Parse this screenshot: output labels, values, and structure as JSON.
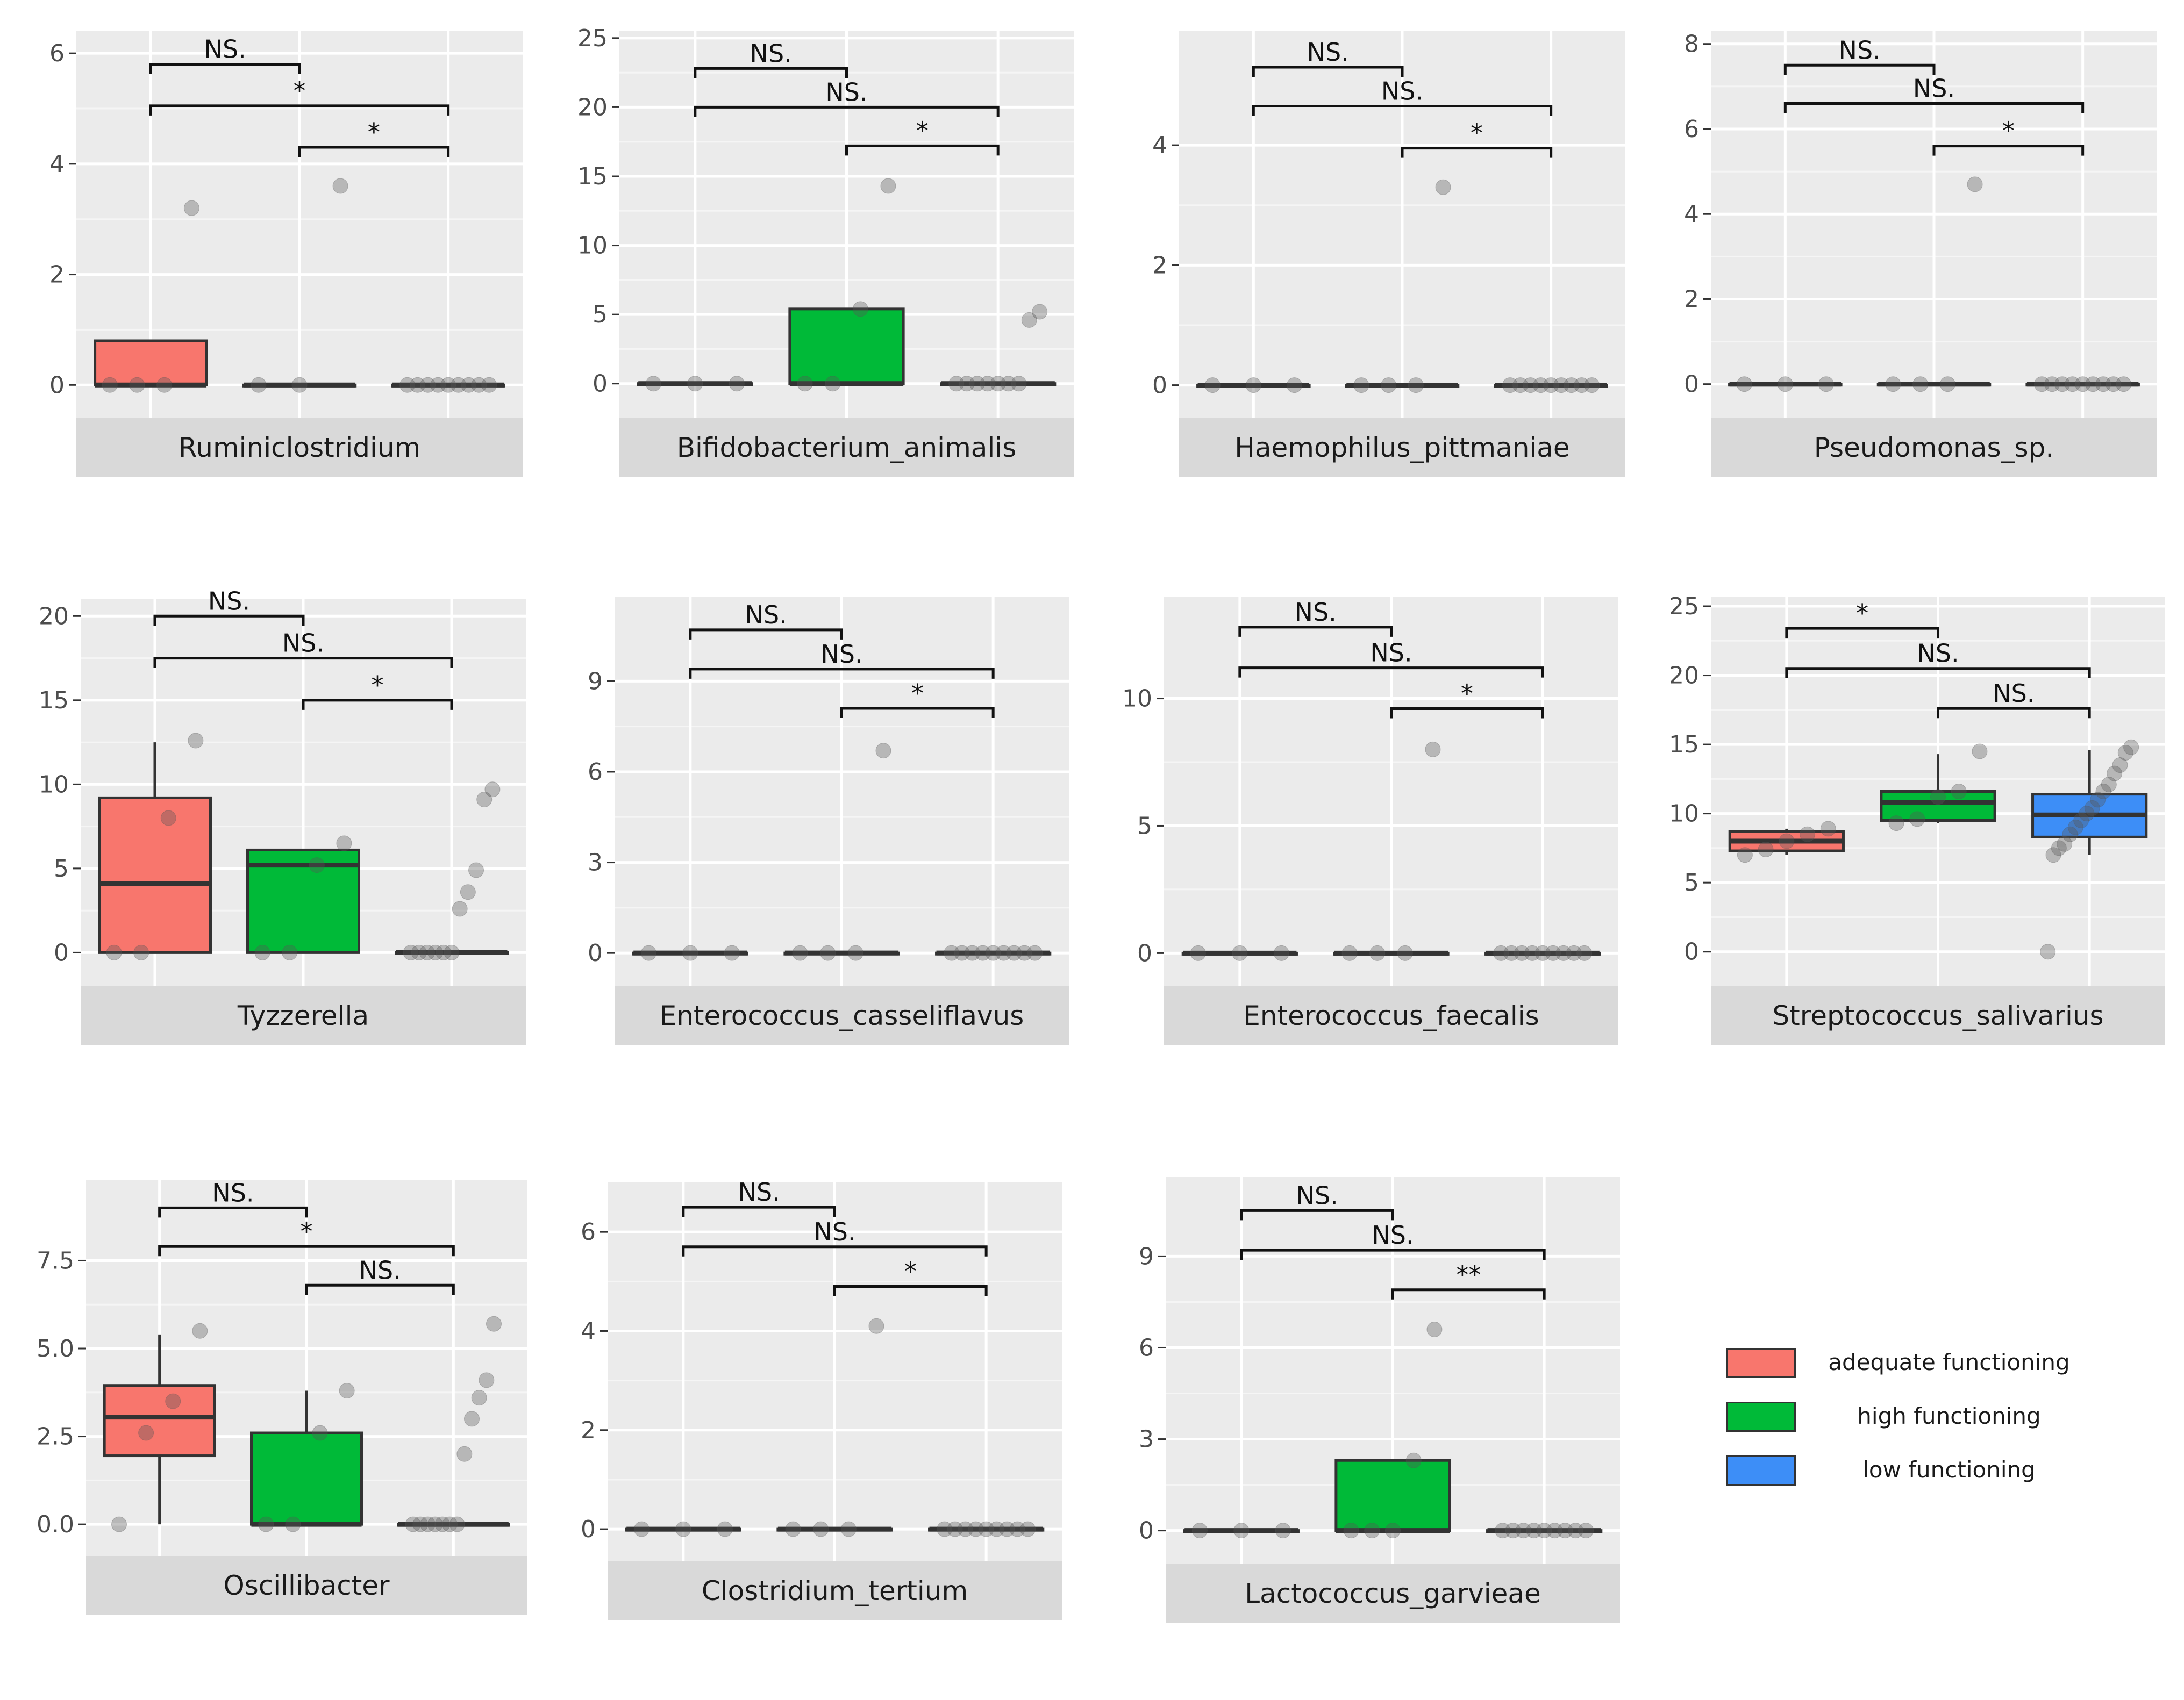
{
  "legend": {
    "items": [
      {
        "label": "adequate functioning",
        "color": "#F8766D"
      },
      {
        "label": "high functioning",
        "color": "#00BA38"
      },
      {
        "label": "low functioning",
        "color": "#3D8EF7"
      }
    ]
  },
  "chart_data": [
    {
      "type": "box",
      "title": "Ruminiclostridium",
      "ylim": [
        -0.6,
        6.4
      ],
      "yticks": [
        "0",
        "2",
        "4",
        "6"
      ],
      "boxes": [
        {
          "group": "adequate functioning",
          "fill": "#F8766D",
          "q1": 0,
          "median": 0,
          "q3": 0.8,
          "wlow": 0,
          "whigh": 0,
          "points": [
            0,
            0,
            0,
            3.2
          ]
        },
        {
          "group": "high functioning",
          "fill": "#00BA38",
          "q1": 0,
          "median": 0,
          "q3": 0,
          "wlow": 0,
          "whigh": 0,
          "points": [
            0,
            0,
            3.6
          ]
        },
        {
          "group": "low functioning",
          "fill": "#3D8EF7",
          "q1": 0,
          "median": 0,
          "q3": 0,
          "wlow": 0,
          "whigh": 0,
          "points": [
            0,
            0,
            0,
            0,
            0,
            0,
            0,
            0,
            0
          ]
        }
      ],
      "brackets": [
        {
          "from": 0,
          "to": 1,
          "y": 5.8,
          "label": "NS."
        },
        {
          "from": 0,
          "to": 2,
          "y": 5.05,
          "label": "*"
        },
        {
          "from": 1,
          "to": 2,
          "y": 4.3,
          "label": "*"
        }
      ]
    },
    {
      "type": "box",
      "title": "Bifidobacterium_animalis",
      "ylim": [
        -2.5,
        25.5
      ],
      "yticks": [
        "0",
        "5",
        "10",
        "15",
        "20",
        "25"
      ],
      "boxes": [
        {
          "group": "adequate functioning",
          "fill": "#F8766D",
          "q1": 0,
          "median": 0,
          "q3": 0,
          "wlow": 0,
          "whigh": 0,
          "points": [
            0,
            0,
            0
          ]
        },
        {
          "group": "high functioning",
          "fill": "#00BA38",
          "q1": 0,
          "median": 0,
          "q3": 5.4,
          "wlow": 0,
          "whigh": 5.4,
          "points": [
            0,
            0,
            5.4,
            14.3
          ]
        },
        {
          "group": "low functioning",
          "fill": "#3D8EF7",
          "q1": 0,
          "median": 0,
          "q3": 0,
          "wlow": 0,
          "whigh": 0,
          "points": [
            0,
            0,
            0,
            0,
            0,
            0,
            0,
            4.6,
            5.2
          ]
        }
      ],
      "brackets": [
        {
          "from": 0,
          "to": 1,
          "y": 22.8,
          "label": "NS."
        },
        {
          "from": 0,
          "to": 2,
          "y": 20,
          "label": "NS."
        },
        {
          "from": 1,
          "to": 2,
          "y": 17.2,
          "label": "*"
        }
      ]
    },
    {
      "type": "box",
      "title": "Haemophilus_pittmaniae",
      "ylim": [
        -0.55,
        5.9
      ],
      "yticks": [
        "0",
        "2",
        "4"
      ],
      "boxes": [
        {
          "group": "adequate functioning",
          "fill": "#F8766D",
          "q1": 0,
          "median": 0,
          "q3": 0,
          "wlow": 0,
          "whigh": 0,
          "points": [
            0,
            0,
            0
          ]
        },
        {
          "group": "high functioning",
          "fill": "#00BA38",
          "q1": 0,
          "median": 0,
          "q3": 0,
          "wlow": 0,
          "whigh": 0,
          "points": [
            0,
            0,
            0,
            3.3
          ]
        },
        {
          "group": "low functioning",
          "fill": "#3D8EF7",
          "q1": 0,
          "median": 0,
          "q3": 0,
          "wlow": 0,
          "whigh": 0,
          "points": [
            0,
            0,
            0,
            0,
            0,
            0,
            0,
            0,
            0
          ]
        }
      ],
      "brackets": [
        {
          "from": 0,
          "to": 1,
          "y": 5.3,
          "label": "NS."
        },
        {
          "from": 0,
          "to": 2,
          "y": 4.65,
          "label": "NS."
        },
        {
          "from": 1,
          "to": 2,
          "y": 3.95,
          "label": "*"
        }
      ]
    },
    {
      "type": "box",
      "title": "Pseudomonas_sp.",
      "ylim": [
        -0.8,
        8.3
      ],
      "yticks": [
        "0",
        "2",
        "4",
        "6",
        "8"
      ],
      "boxes": [
        {
          "group": "adequate functioning",
          "fill": "#F8766D",
          "q1": 0,
          "median": 0,
          "q3": 0,
          "wlow": 0,
          "whigh": 0,
          "points": [
            0,
            0,
            0
          ]
        },
        {
          "group": "high functioning",
          "fill": "#00BA38",
          "q1": 0,
          "median": 0,
          "q3": 0,
          "wlow": 0,
          "whigh": 0,
          "points": [
            0,
            0,
            0,
            4.7
          ]
        },
        {
          "group": "low functioning",
          "fill": "#3D8EF7",
          "q1": 0,
          "median": 0,
          "q3": 0,
          "wlow": 0,
          "whigh": 0,
          "points": [
            0,
            0,
            0,
            0,
            0,
            0,
            0,
            0,
            0
          ]
        }
      ],
      "brackets": [
        {
          "from": 0,
          "to": 1,
          "y": 7.5,
          "label": "NS."
        },
        {
          "from": 0,
          "to": 2,
          "y": 6.6,
          "label": "NS."
        },
        {
          "from": 1,
          "to": 2,
          "y": 5.6,
          "label": "*"
        }
      ]
    },
    {
      "type": "box",
      "title": "Tyzzerella",
      "ylim": [
        -2,
        21
      ],
      "yticks": [
        "0",
        "5",
        "10",
        "15",
        "20"
      ],
      "boxes": [
        {
          "group": "adequate functioning",
          "fill": "#F8766D",
          "q1": 0,
          "median": 4.1,
          "q3": 9.2,
          "wlow": 0,
          "whigh": 12.5,
          "points": [
            0,
            0,
            8,
            12.6
          ]
        },
        {
          "group": "high functioning",
          "fill": "#00BA38",
          "q1": 0,
          "median": 5.2,
          "q3": 6.1,
          "wlow": 0,
          "whigh": 6.1,
          "points": [
            0,
            0,
            5.2,
            6.5
          ]
        },
        {
          "group": "low functioning",
          "fill": "#3D8EF7",
          "q1": 0,
          "median": 0,
          "q3": 0,
          "wlow": 0,
          "whigh": 0,
          "points": [
            0,
            0,
            0,
            0,
            0,
            0,
            2.6,
            3.6,
            4.9,
            9.1,
            9.7
          ]
        }
      ],
      "brackets": [
        {
          "from": 0,
          "to": 1,
          "y": 20,
          "label": "NS."
        },
        {
          "from": 0,
          "to": 2,
          "y": 17.5,
          "label": "NS."
        },
        {
          "from": 1,
          "to": 2,
          "y": 15,
          "label": "*"
        }
      ]
    },
    {
      "type": "box",
      "title": "Enterococcus_casseliflavus",
      "ylim": [
        -1.1,
        11.8
      ],
      "yticks": [
        "0",
        "3",
        "6",
        "9"
      ],
      "boxes": [
        {
          "group": "adequate functioning",
          "fill": "#F8766D",
          "q1": 0,
          "median": 0,
          "q3": 0,
          "wlow": 0,
          "whigh": 0,
          "points": [
            0,
            0,
            0
          ]
        },
        {
          "group": "high functioning",
          "fill": "#00BA38",
          "q1": 0,
          "median": 0,
          "q3": 0,
          "wlow": 0,
          "whigh": 0,
          "points": [
            0,
            0,
            0,
            6.7
          ]
        },
        {
          "group": "low functioning",
          "fill": "#3D8EF7",
          "q1": 0,
          "median": 0,
          "q3": 0,
          "wlow": 0,
          "whigh": 0,
          "points": [
            0,
            0,
            0,
            0,
            0,
            0,
            0,
            0,
            0
          ]
        }
      ],
      "brackets": [
        {
          "from": 0,
          "to": 1,
          "y": 10.7,
          "label": "NS."
        },
        {
          "from": 0,
          "to": 2,
          "y": 9.4,
          "label": "NS."
        },
        {
          "from": 1,
          "to": 2,
          "y": 8.1,
          "label": "*"
        }
      ]
    },
    {
      "type": "box",
      "title": "Enterococcus_faecalis",
      "ylim": [
        -1.3,
        14
      ],
      "yticks": [
        "0",
        "5",
        "10"
      ],
      "boxes": [
        {
          "group": "adequate functioning",
          "fill": "#F8766D",
          "q1": 0,
          "median": 0,
          "q3": 0,
          "wlow": 0,
          "whigh": 0,
          "points": [
            0,
            0,
            0
          ]
        },
        {
          "group": "high functioning",
          "fill": "#00BA38",
          "q1": 0,
          "median": 0,
          "q3": 0,
          "wlow": 0,
          "whigh": 0,
          "points": [
            0,
            0,
            0,
            8
          ]
        },
        {
          "group": "low functioning",
          "fill": "#3D8EF7",
          "q1": 0,
          "median": 0,
          "q3": 0,
          "wlow": 0,
          "whigh": 0,
          "points": [
            0,
            0,
            0,
            0,
            0,
            0,
            0,
            0,
            0
          ]
        }
      ],
      "brackets": [
        {
          "from": 0,
          "to": 1,
          "y": 12.8,
          "label": "NS."
        },
        {
          "from": 0,
          "to": 2,
          "y": 11.2,
          "label": "NS."
        },
        {
          "from": 1,
          "to": 2,
          "y": 9.6,
          "label": "*"
        }
      ]
    },
    {
      "type": "box",
      "title": "Streptococcus_salivarius",
      "ylim": [
        -2.5,
        25.7
      ],
      "yticks": [
        "0",
        "5",
        "10",
        "15",
        "20",
        "25"
      ],
      "boxes": [
        {
          "group": "adequate functioning",
          "fill": "#F8766D",
          "q1": 7.3,
          "median": 8.0,
          "q3": 8.7,
          "wlow": 7.0,
          "whigh": 8.9,
          "points": [
            7,
            7.4,
            8,
            8.5,
            8.9
          ]
        },
        {
          "group": "high functioning",
          "fill": "#00BA38",
          "q1": 9.5,
          "median": 10.8,
          "q3": 11.6,
          "wlow": 9.3,
          "whigh": 14.3,
          "points": [
            9.3,
            9.6,
            11.2,
            11.6,
            14.5
          ]
        },
        {
          "group": "low functioning",
          "fill": "#3D8EF7",
          "q1": 8.3,
          "median": 9.9,
          "q3": 11.4,
          "wlow": 7.0,
          "whigh": 14.6,
          "points": [
            0,
            7,
            7.5,
            7.8,
            8.5,
            9,
            9.5,
            10,
            10.4,
            11,
            11.6,
            12.1,
            12.9,
            13.5,
            14.4,
            14.8
          ]
        }
      ],
      "brackets": [
        {
          "from": 0,
          "to": 1,
          "y": 23.4,
          "label": "*"
        },
        {
          "from": 0,
          "to": 2,
          "y": 20.5,
          "label": "NS."
        },
        {
          "from": 1,
          "to": 2,
          "y": 17.6,
          "label": "NS."
        }
      ]
    },
    {
      "type": "box",
      "title": "Oscillibacter",
      "ylim": [
        -0.9,
        9.8
      ],
      "yticks": [
        "0.0",
        "2.5",
        "5.0",
        "7.5"
      ],
      "boxes": [
        {
          "group": "adequate functioning",
          "fill": "#F8766D",
          "q1": 1.95,
          "median": 3.05,
          "q3": 3.95,
          "wlow": 0,
          "whigh": 5.4,
          "points": [
            0,
            2.6,
            3.5,
            5.5
          ]
        },
        {
          "group": "high functioning",
          "fill": "#00BA38",
          "q1": 0,
          "median": 0,
          "q3": 2.6,
          "wlow": 0,
          "whigh": 3.8,
          "points": [
            0,
            0,
            2.6,
            3.8
          ]
        },
        {
          "group": "low functioning",
          "fill": "#3D8EF7",
          "q1": 0,
          "median": 0,
          "q3": 0,
          "wlow": 0,
          "whigh": 0,
          "points": [
            0,
            0,
            0,
            0,
            0,
            0,
            0,
            2,
            3,
            3.6,
            4.1,
            5.7
          ]
        }
      ],
      "brackets": [
        {
          "from": 0,
          "to": 1,
          "y": 9.0,
          "label": "NS."
        },
        {
          "from": 0,
          "to": 2,
          "y": 7.9,
          "label": "*"
        },
        {
          "from": 1,
          "to": 2,
          "y": 6.8,
          "label": "NS."
        }
      ]
    },
    {
      "type": "box",
      "title": "Clostridium_tertium",
      "ylim": [
        -0.65,
        7.0
      ],
      "yticks": [
        "0",
        "2",
        "4",
        "6"
      ],
      "boxes": [
        {
          "group": "adequate functioning",
          "fill": "#F8766D",
          "q1": 0,
          "median": 0,
          "q3": 0,
          "wlow": 0,
          "whigh": 0,
          "points": [
            0,
            0,
            0
          ]
        },
        {
          "group": "high functioning",
          "fill": "#00BA38",
          "q1": 0,
          "median": 0,
          "q3": 0,
          "wlow": 0,
          "whigh": 0,
          "points": [
            0,
            0,
            0,
            4.1
          ]
        },
        {
          "group": "low functioning",
          "fill": "#3D8EF7",
          "q1": 0,
          "median": 0,
          "q3": 0,
          "wlow": 0,
          "whigh": 0,
          "points": [
            0,
            0,
            0,
            0,
            0,
            0,
            0,
            0,
            0
          ]
        }
      ],
      "brackets": [
        {
          "from": 0,
          "to": 1,
          "y": 6.5,
          "label": "NS."
        },
        {
          "from": 0,
          "to": 2,
          "y": 5.7,
          "label": "NS."
        },
        {
          "from": 1,
          "to": 2,
          "y": 4.9,
          "label": "*"
        }
      ]
    },
    {
      "type": "box",
      "title": "Lactococcus_garvieae",
      "ylim": [
        -1.1,
        11.6
      ],
      "yticks": [
        "0",
        "3",
        "6",
        "9"
      ],
      "boxes": [
        {
          "group": "adequate functioning",
          "fill": "#F8766D",
          "q1": 0,
          "median": 0,
          "q3": 0,
          "wlow": 0,
          "whigh": 0,
          "points": [
            0,
            0,
            0
          ]
        },
        {
          "group": "high functioning",
          "fill": "#00BA38",
          "q1": 0,
          "median": 0,
          "q3": 2.3,
          "wlow": 0,
          "whigh": 2.3,
          "points": [
            0,
            0,
            0,
            2.3,
            6.6
          ]
        },
        {
          "group": "low functioning",
          "fill": "#3D8EF7",
          "q1": 0,
          "median": 0,
          "q3": 0,
          "wlow": 0,
          "whigh": 0,
          "points": [
            0,
            0,
            0,
            0,
            0,
            0,
            0,
            0,
            0
          ]
        }
      ],
      "brackets": [
        {
          "from": 0,
          "to": 1,
          "y": 10.5,
          "label": "NS."
        },
        {
          "from": 0,
          "to": 2,
          "y": 9.2,
          "label": "NS."
        },
        {
          "from": 1,
          "to": 2,
          "y": 7.9,
          "label": "**"
        }
      ]
    }
  ]
}
